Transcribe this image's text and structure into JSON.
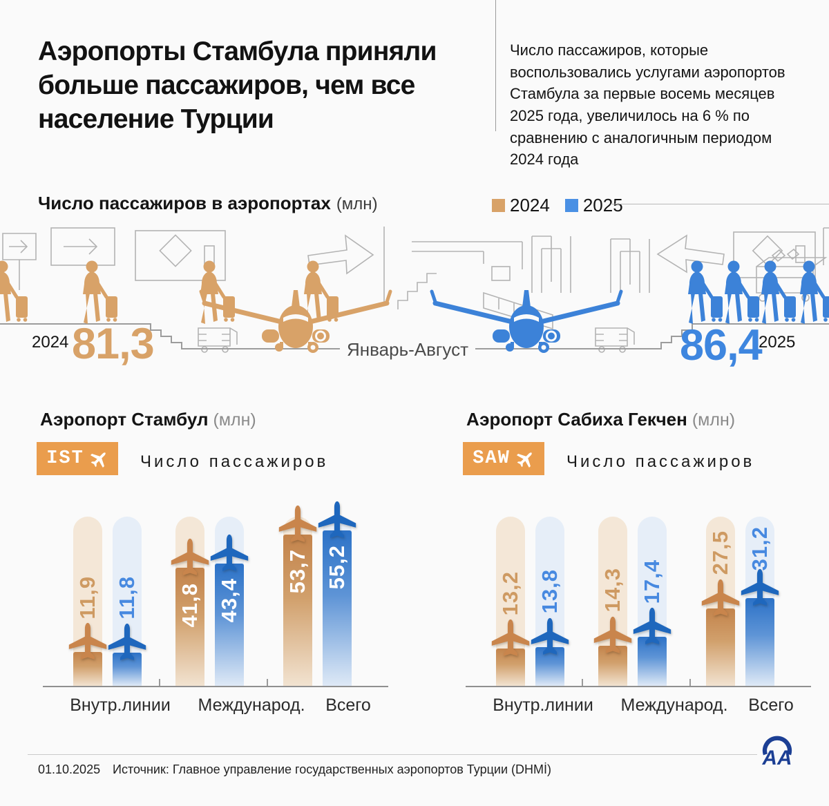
{
  "colors": {
    "tan": "#D8A268",
    "tan_strong": "#C9854C",
    "tan_label": "#CE9A62",
    "blue": "#4A90E4",
    "blue_strong": "#1E67BD",
    "blue_label": "#4789E0",
    "pill_tan": "#F4E7D7",
    "pill_blue": "#E6EEF8",
    "badge_orange": "#EA9D4D",
    "lineart_gray": "#B3B3B3",
    "logo_blue": "#1C3F94",
    "white": "#FFFFFF"
  },
  "header": {
    "title": "Аэропорты Стамбула приняли больше пассажиров, чем все население Турции",
    "intro": "Число  пассажиров, которые воспользовались услугами аэропортов Стамбула за первые восемь месяцев 2025 года, увеличилось на 6 % по сравнению с аналогичным периодом 2024 года"
  },
  "overview": {
    "heading": "Число пассажиров в аэропортах",
    "unit": "(млн)",
    "legend": [
      {
        "label": "2024",
        "color": "#D8A268"
      },
      {
        "label": "2025",
        "color": "#4A90E4"
      }
    ],
    "left_year": "2024",
    "left_value": "81,3",
    "period": "Январь-Август",
    "right_value": "86,4",
    "right_year": "2025"
  },
  "charts": [
    {
      "title": "Аэропорт Стамбул",
      "unit": "(млн)",
      "code": "IST",
      "subtitle": "Число пассажиров",
      "categories": [
        "Внутр.линии",
        "Международ.",
        "Всего"
      ],
      "series": [
        {
          "name": "2024",
          "color_key": "tan",
          "values": [
            11.9,
            41.8,
            53.7
          ],
          "labels": [
            "11,9",
            "41,8",
            "53,7"
          ]
        },
        {
          "name": "2025",
          "color_key": "blue",
          "values": [
            11.8,
            43.4,
            55.2
          ],
          "labels": [
            "11,8",
            "43,4",
            "55,2"
          ]
        }
      ]
    },
    {
      "title": "Аэропорт Сабиха Гекчен",
      "unit": "(млн)",
      "code": "SAW",
      "subtitle": "Число пассажиров",
      "categories": [
        "Внутр.линии",
        "Международ.",
        "Всего"
      ],
      "series": [
        {
          "name": "2024",
          "color_key": "tan",
          "values": [
            13.2,
            14.3,
            27.5
          ],
          "labels": [
            "13,2",
            "14,3",
            "27,5"
          ]
        },
        {
          "name": "2025",
          "color_key": "blue",
          "values": [
            13.8,
            17.4,
            31.2
          ],
          "labels": [
            "13,8",
            "17,4",
            "31,2"
          ]
        }
      ]
    }
  ],
  "footer": {
    "date": "01.10.2025",
    "source": "Источник: Главное управление государственных аэропортов Турции (DHMİ)",
    "agency": "AA"
  },
  "chart_data": [
    {
      "type": "bar",
      "title": "Число пассажиров в аэропортах (млн)",
      "subtitle_period": "Январь-Август",
      "categories": [
        "2024",
        "2025"
      ],
      "values": [
        81.3,
        86.4
      ],
      "colors": [
        "#D8A268",
        "#4A90E4"
      ],
      "legend": [
        "2024",
        "2025"
      ]
    },
    {
      "type": "bar",
      "title": "Аэропорт Стамбул (млн)",
      "categories": [
        "Внутр.линии",
        "Международ.",
        "Всего"
      ],
      "series": [
        {
          "name": "2024",
          "values": [
            11.9,
            41.8,
            53.7
          ]
        },
        {
          "name": "2025",
          "values": [
            11.8,
            43.4,
            55.2
          ]
        }
      ],
      "ylim": [
        0,
        60
      ],
      "grid": false,
      "legend_position": "top"
    },
    {
      "type": "bar",
      "title": "Аэропорт Сабиха Гекчен (млн)",
      "categories": [
        "Внутр.линии",
        "Международ.",
        "Всего"
      ],
      "series": [
        {
          "name": "2024",
          "values": [
            13.2,
            14.3,
            27.5
          ]
        },
        {
          "name": "2025",
          "values": [
            13.8,
            17.4,
            31.2
          ]
        }
      ],
      "ylim": [
        0,
        60
      ],
      "grid": false,
      "legend_position": "top"
    }
  ]
}
